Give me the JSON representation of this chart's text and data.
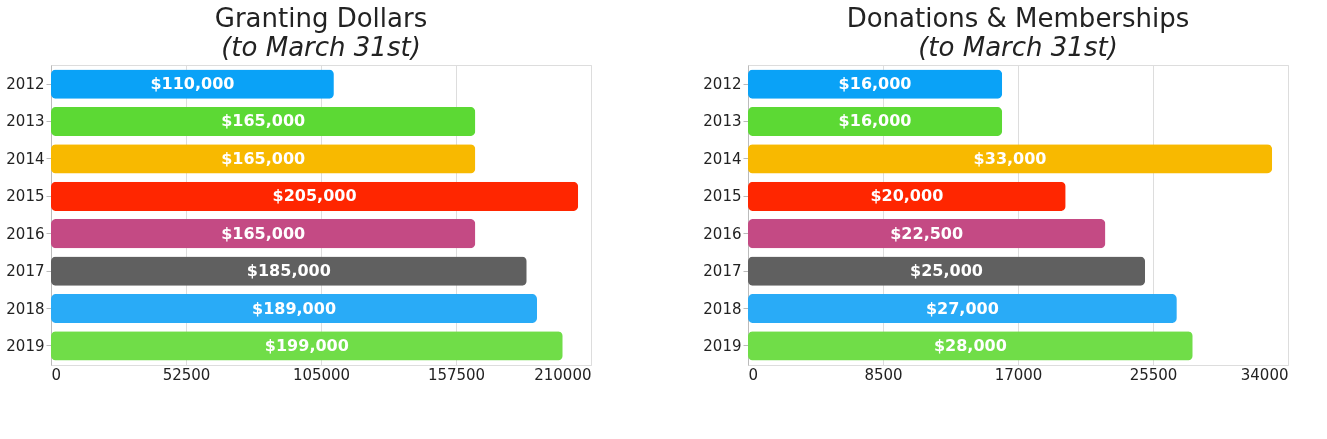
{
  "chart_data": [
    {
      "type": "bar",
      "orientation": "horizontal",
      "title": "Granting Dollars",
      "subtitle": "(to March 31st)",
      "categories": [
        "2012",
        "2013",
        "2014",
        "2015",
        "2016",
        "2017",
        "2018",
        "2019"
      ],
      "values": [
        110000,
        165000,
        165000,
        205000,
        165000,
        185000,
        189000,
        199000
      ],
      "colors": [
        "#0aa2f7",
        "#5cd934",
        "#f8b900",
        "#ff2600",
        "#c44a84",
        "#606060",
        "#29abf7",
        "#70dd48"
      ],
      "value_labels": [
        "$110,000",
        "$165,000",
        "$165,000",
        "$205,000",
        "$165,000",
        "$185,000",
        "$189,000",
        "$199,000"
      ],
      "xlim": [
        0,
        210000
      ],
      "xticks": [
        0,
        52500,
        105000,
        157500,
        210000
      ],
      "grid": "x"
    },
    {
      "type": "bar",
      "orientation": "horizontal",
      "title": "Donations & Memberships",
      "subtitle": "(to March 31st)",
      "categories": [
        "2012",
        "2013",
        "2014",
        "2015",
        "2016",
        "2017",
        "2018",
        "2019"
      ],
      "values": [
        16000,
        16000,
        33000,
        20000,
        22500,
        25000,
        27000,
        28000
      ],
      "colors": [
        "#0aa2f7",
        "#5cd934",
        "#f8b900",
        "#ff2600",
        "#c44a84",
        "#606060",
        "#29abf7",
        "#70dd48"
      ],
      "value_labels": [
        "$16,000",
        "$16,000",
        "$33,000",
        "$20,000",
        "$22,500",
        "$25,000",
        "$27,000",
        "$28,000"
      ],
      "xlim": [
        0,
        34000
      ],
      "xticks": [
        0,
        8500,
        17000,
        25500,
        34000
      ],
      "grid": "x"
    }
  ]
}
